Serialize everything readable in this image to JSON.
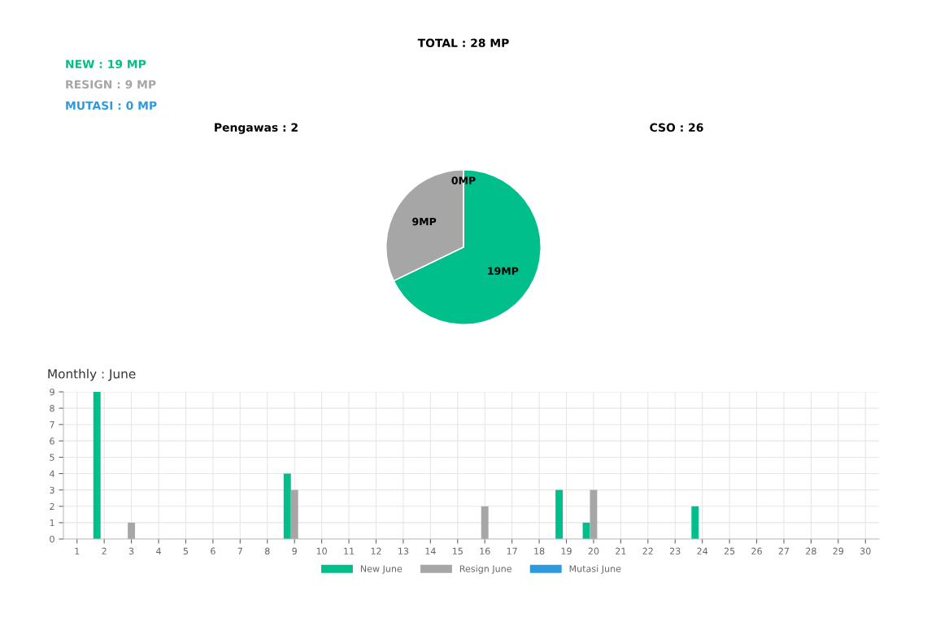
{
  "chart_data": [
    {
      "type": "pie",
      "title": "TOTAL : 28 MP",
      "annotations": [
        "NEW : 19 MP",
        "RESIGN : 9 MP",
        "MUTASI : 0 MP",
        "Pengawas : 2",
        "CSO : 26"
      ],
      "categories": [
        null,
        null,
        null
      ],
      "values": [
        19,
        9,
        0
      ],
      "colors": [
        "#00bf8a",
        "#a6a6a6",
        "#2d9ae0"
      ],
      "value_labels": [
        "19MP",
        "9MP",
        "0MP"
      ],
      "legend": false
    },
    {
      "type": "bar",
      "title": "Monthly : June",
      "categories": [
        "1",
        "2",
        "3",
        "4",
        "5",
        "6",
        "7",
        "8",
        "9",
        "10",
        "11",
        "12",
        "13",
        "14",
        "15",
        "16",
        "17",
        "18",
        "19",
        "20",
        "21",
        "22",
        "23",
        "24",
        "25",
        "26",
        "27",
        "28",
        "29",
        "30"
      ],
      "series": [
        {
          "name": "New June",
          "color": "#00bf8a",
          "values": [
            0,
            9,
            0,
            0,
            0,
            0,
            0,
            0,
            4,
            0,
            0,
            0,
            0,
            0,
            0,
            0,
            0,
            0,
            3,
            1,
            0,
            0,
            0,
            2,
            0,
            0,
            0,
            0,
            0,
            0
          ]
        },
        {
          "name": "Resign June",
          "color": "#a6a6a6",
          "values": [
            0,
            0,
            1,
            0,
            0,
            0,
            0,
            0,
            3,
            0,
            0,
            0,
            0,
            0,
            0,
            2,
            0,
            0,
            0,
            3,
            0,
            0,
            0,
            0,
            0,
            0,
            0,
            0,
            0,
            0
          ]
        },
        {
          "name": "Mutasi June",
          "color": "#2d9ae0",
          "values": [
            0,
            0,
            0,
            0,
            0,
            0,
            0,
            0,
            0,
            0,
            0,
            0,
            0,
            0,
            0,
            0,
            0,
            0,
            0,
            0,
            0,
            0,
            0,
            0,
            0,
            0,
            0,
            0,
            0,
            0
          ]
        }
      ],
      "ylim": [
        0,
        9
      ],
      "yticks": [
        0,
        1,
        2,
        3,
        4,
        5,
        6,
        7,
        8,
        9
      ],
      "grid": true,
      "legend": "bottom"
    }
  ]
}
